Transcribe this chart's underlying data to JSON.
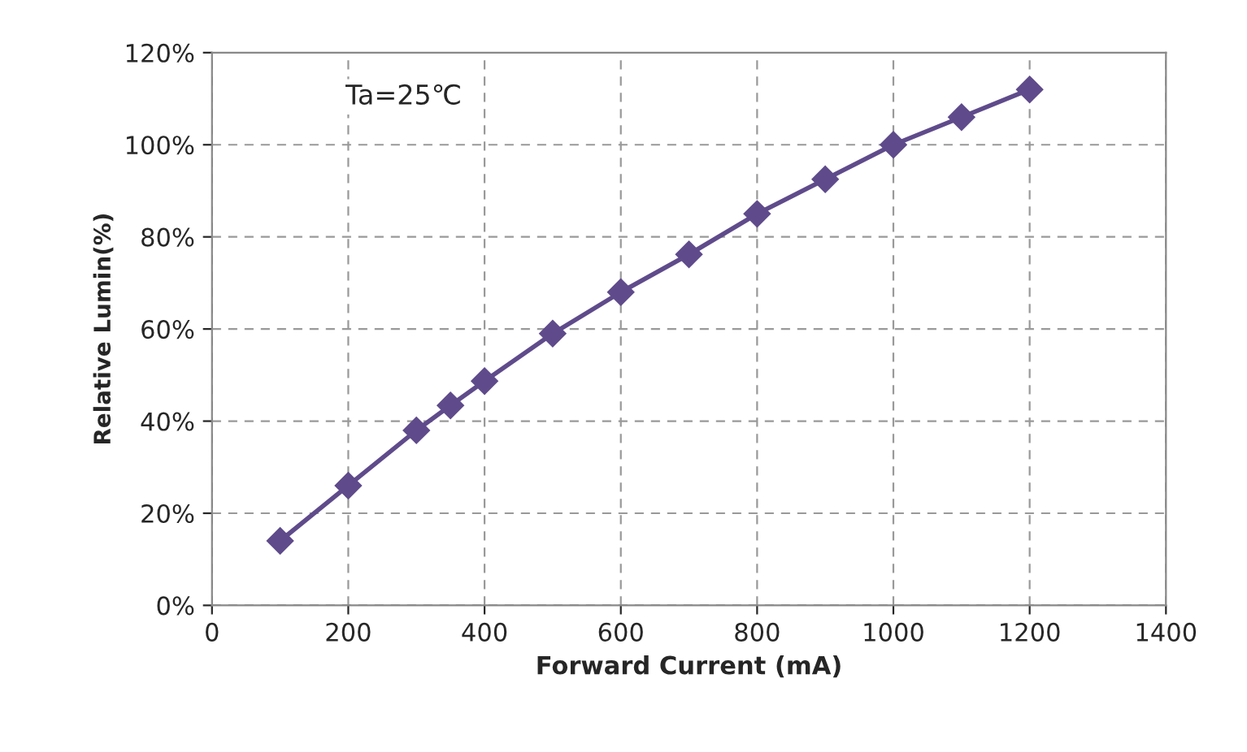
{
  "chart_data": {
    "type": "line",
    "xlabel": "Forward Current (mA)",
    "ylabel": "Relative Lumin(%)",
    "annotations": [
      "Ta=25℃"
    ],
    "series": [
      {
        "color": "#5f4b8b",
        "x": [
          100,
          200,
          300,
          350,
          400,
          500,
          600,
          700,
          800,
          900,
          1000,
          1100,
          1200
        ],
        "values": [
          14,
          26,
          38,
          43.4,
          48.7,
          59,
          68,
          76.2,
          85,
          92.5,
          100,
          106,
          112
        ]
      }
    ],
    "xlim": [
      0,
      1400
    ],
    "xticks": [
      0,
      200,
      400,
      600,
      800,
      1000,
      1200,
      1400
    ],
    "ylim": [
      0,
      120
    ],
    "yticks": [
      {
        "value": 0,
        "label": "0%"
      },
      {
        "value": 20,
        "label": "20%"
      },
      {
        "value": 40,
        "label": "40%"
      },
      {
        "value": 60,
        "label": "60%"
      },
      {
        "value": 80,
        "label": "80%"
      },
      {
        "value": 100,
        "label": "100%"
      },
      {
        "value": 120,
        "label": "120%"
      }
    ],
    "grid": true,
    "marker": "diamond",
    "line_style": "solid",
    "legend": false
  }
}
